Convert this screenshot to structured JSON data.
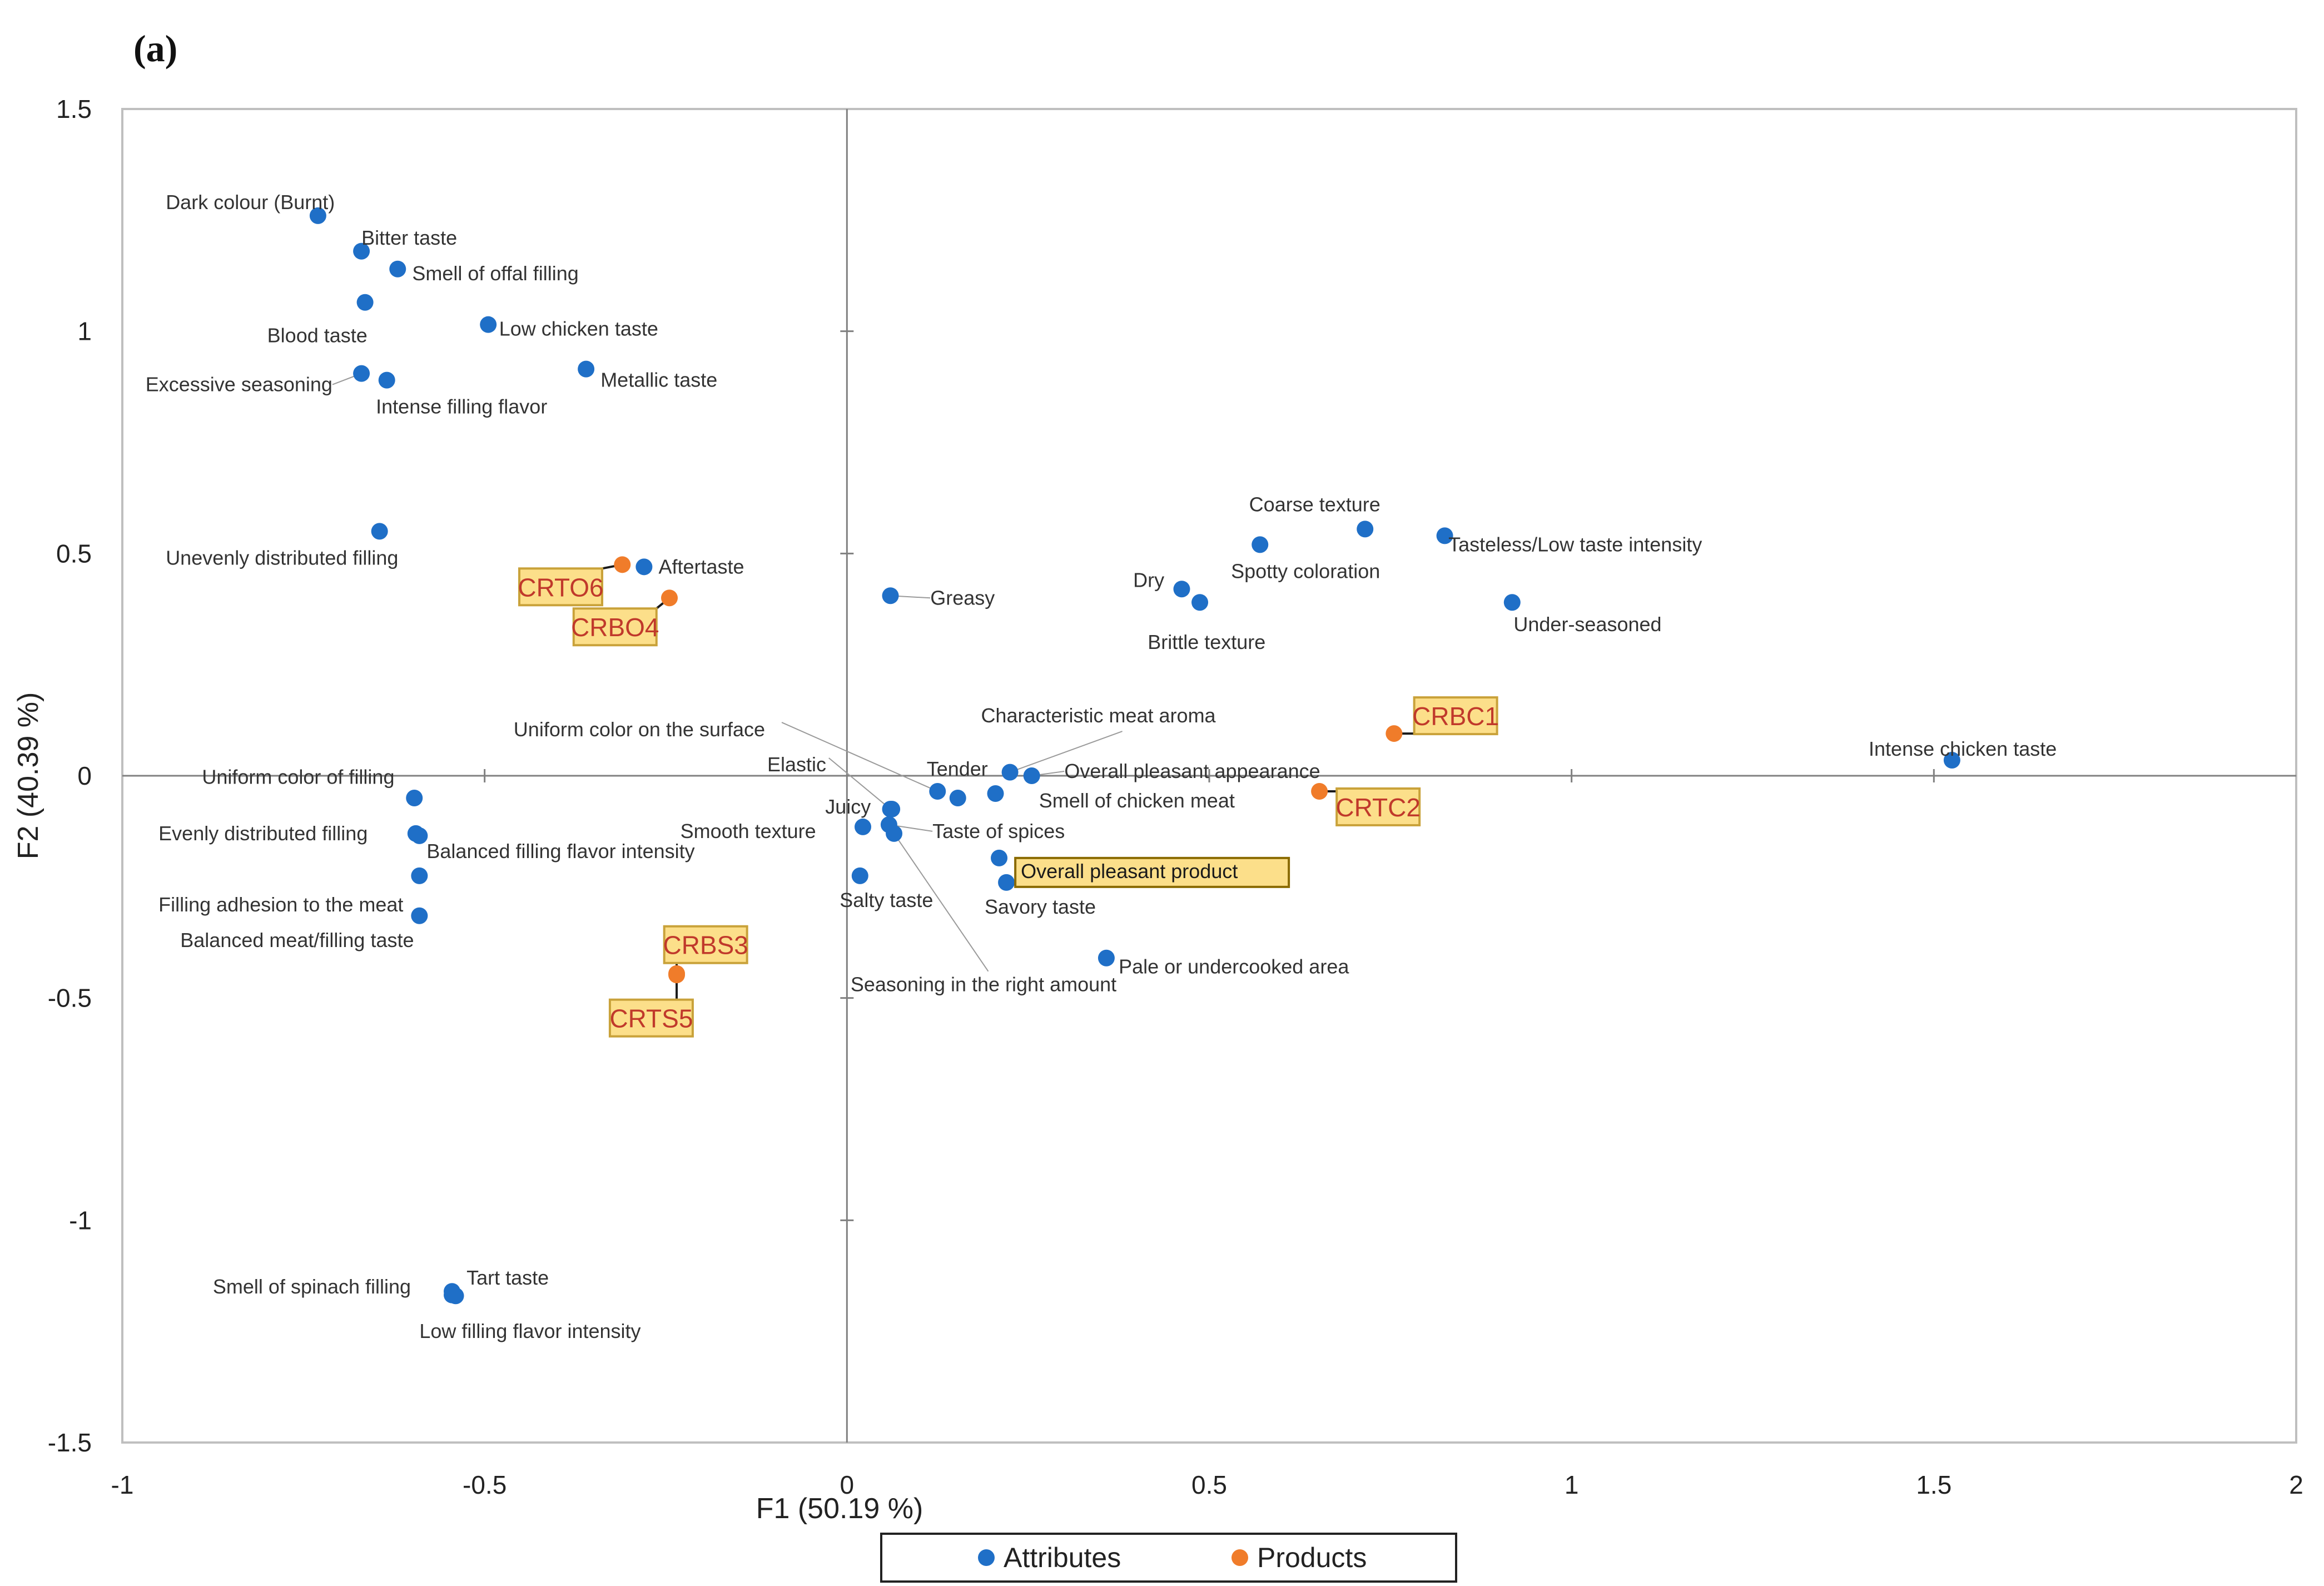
{
  "panel_label": "(a)",
  "chart_data": {
    "type": "scatter",
    "title": "",
    "xlabel": "F1 (50.19 %)",
    "ylabel": "F2 (40.39 %)",
    "xlim": [
      -1,
      2
    ],
    "ylim": [
      -1.5,
      1.5
    ],
    "xticks": [
      -1,
      -0.5,
      0,
      0.5,
      1,
      1.5,
      2
    ],
    "yticks": [
      -1.5,
      -1,
      -0.5,
      0,
      0.5,
      1,
      1.5
    ],
    "xtick_labels": [
      "-1",
      "-0.5",
      "0",
      "0.5",
      "1",
      "1.5",
      "2"
    ],
    "ytick_labels": [
      "-1.5",
      "-1",
      "-0.5",
      "0",
      "0.5",
      "1",
      "1.5"
    ],
    "legend": {
      "position": "bottom",
      "entries": [
        {
          "name": "Attributes",
          "color": "#1f6fc7"
        },
        {
          "name": "Products",
          "color": "#f07c2a"
        }
      ]
    },
    "series": [
      {
        "name": "Attributes",
        "color": "#1f6fc7",
        "points": [
          {
            "label": "Dark colour (Burnt)",
            "x": -0.73,
            "y": 1.26,
            "lx": -0.94,
            "ly": 1.29,
            "anchor": "start"
          },
          {
            "label": "Bitter taste",
            "x": -0.67,
            "y": 1.18,
            "lx": -0.67,
            "ly": 1.21,
            "anchor": "start"
          },
          {
            "label": "Smell of offal filling",
            "x": -0.62,
            "y": 1.14,
            "lx": -0.6,
            "ly": 1.13,
            "anchor": "start"
          },
          {
            "label": "Blood taste",
            "x": -0.665,
            "y": 1.065,
            "lx": -0.8,
            "ly": 0.99,
            "anchor": "start"
          },
          {
            "label": "Low chicken taste",
            "x": -0.495,
            "y": 1.015,
            "lx": -0.48,
            "ly": 1.005,
            "anchor": "start"
          },
          {
            "label": "Metallic taste",
            "x": -0.36,
            "y": 0.915,
            "lx": -0.34,
            "ly": 0.89,
            "anchor": "start"
          },
          {
            "label": "Excessive seasoning",
            "x": -0.67,
            "y": 0.905,
            "lx": -0.71,
            "ly": 0.88,
            "anchor": "end",
            "leader": true
          },
          {
            "label": "Intense filling flavor",
            "x": -0.635,
            "y": 0.89,
            "lx": -0.65,
            "ly": 0.83,
            "anchor": "start"
          },
          {
            "label": "Unevenly distributed filling",
            "x": -0.645,
            "y": 0.55,
            "lx": -0.94,
            "ly": 0.49,
            "anchor": "start"
          },
          {
            "label": "Aftertaste",
            "x": -0.28,
            "y": 0.47,
            "lx": -0.26,
            "ly": 0.47,
            "anchor": "start"
          },
          {
            "label": "Greasy",
            "x": 0.06,
            "y": 0.405,
            "lx": 0.115,
            "ly": 0.4,
            "anchor": "start",
            "leader": true
          },
          {
            "label": "Coarse texture",
            "x": 0.715,
            "y": 0.555,
            "lx": 0.555,
            "ly": 0.61,
            "anchor": "start"
          },
          {
            "label": "Tasteless/Low taste intensity",
            "x": 0.825,
            "y": 0.54,
            "lx": 0.83,
            "ly": 0.52,
            "anchor": "start"
          },
          {
            "label": "Spotty coloration",
            "x": 0.57,
            "y": 0.52,
            "lx": 0.53,
            "ly": 0.46,
            "anchor": "start"
          },
          {
            "label": "Dry",
            "x": 0.462,
            "y": 0.42,
            "lx": 0.395,
            "ly": 0.44,
            "anchor": "start"
          },
          {
            "label": "Brittle texture",
            "x": 0.487,
            "y": 0.39,
            "lx": 0.415,
            "ly": 0.3,
            "anchor": "start"
          },
          {
            "label": "Under-seasoned",
            "x": 0.918,
            "y": 0.39,
            "lx": 0.92,
            "ly": 0.34,
            "anchor": "start"
          },
          {
            "label": "Intense chicken taste",
            "x": 1.525,
            "y": 0.035,
            "lx": 1.41,
            "ly": 0.06,
            "anchor": "start"
          },
          {
            "label": "Characteristic meat aroma",
            "x": 0.225,
            "y": 0.008,
            "lx": 0.185,
            "ly": 0.135,
            "anchor": "start",
            "lx2": 0.38,
            "ly2": 0.1
          },
          {
            "label": "Overall pleasant appearance",
            "x": 0.255,
            "y": 0.0,
            "lx": 0.3,
            "ly": 0.01,
            "anchor": "start",
            "leader": true
          },
          {
            "label": "Tender",
            "x": 0.153,
            "y": -0.05,
            "lx": 0.11,
            "ly": 0.015,
            "anchor": "start"
          },
          {
            "label": "Smell of chicken meat",
            "x": 0.205,
            "y": -0.04,
            "lx": 0.265,
            "ly": -0.056,
            "anchor": "start"
          },
          {
            "label": "Uniform color on the surface",
            "x": 0.125,
            "y": -0.035,
            "lx": -0.46,
            "ly": 0.104,
            "anchor": "start",
            "lx2": -0.09,
            "ly2": 0.12
          },
          {
            "label": "Elastic",
            "x": 0.06,
            "y": -0.075,
            "lx": -0.11,
            "ly": 0.025,
            "anchor": "start",
            "lx2": -0.025,
            "ly2": 0.04
          },
          {
            "label": "Juicy",
            "x": 0.062,
            "y": -0.075,
            "lx": -0.03,
            "ly": -0.07,
            "anchor": "start"
          },
          {
            "label": "Smooth texture",
            "x": 0.022,
            "y": -0.115,
            "lx": -0.23,
            "ly": -0.125,
            "anchor": "start"
          },
          {
            "label": "Taste of spices",
            "x": 0.058,
            "y": -0.11,
            "lx": 0.118,
            "ly": -0.125,
            "anchor": "start",
            "leader": true
          },
          {
            "label": "Balanced filling flavor intensity",
            "x": -0.59,
            "y": -0.135,
            "lx": -0.58,
            "ly": -0.17,
            "anchor": "start"
          },
          {
            "label": "Overall pleasant product",
            "x": 0.21,
            "y": -0.185,
            "lx": 0.24,
            "ly": -0.215,
            "anchor": "start",
            "highlight": true
          },
          {
            "label": "Savory taste",
            "x": 0.22,
            "y": -0.24,
            "lx": 0.19,
            "ly": -0.295,
            "anchor": "start"
          },
          {
            "label": "Salty taste",
            "x": 0.018,
            "y": -0.225,
            "lx": -0.01,
            "ly": -0.28,
            "anchor": "start"
          },
          {
            "label": "Seasoning in the right amount",
            "x": 0.065,
            "y": -0.13,
            "lx": 0.005,
            "ly": -0.47,
            "anchor": "start",
            "lx2": 0.195,
            "ly2": -0.44
          },
          {
            "label": "Pale or undercooked area",
            "x": 0.358,
            "y": -0.41,
            "lx": 0.375,
            "ly": -0.43,
            "anchor": "start"
          },
          {
            "label": "Uniform color of filling",
            "x": -0.597,
            "y": -0.05,
            "lx": -0.89,
            "ly": -0.003,
            "anchor": "start"
          },
          {
            "label": "Evenly distributed filling",
            "x": -0.595,
            "y": -0.13,
            "lx": -0.95,
            "ly": -0.13,
            "anchor": "start"
          },
          {
            "label": "Filling adhesion to the meat",
            "x": -0.59,
            "y": -0.225,
            "lx": -0.95,
            "ly": -0.29,
            "anchor": "start"
          },
          {
            "label": "Balanced meat/filling taste",
            "x": -0.59,
            "y": -0.315,
            "lx": -0.92,
            "ly": -0.37,
            "anchor": "start"
          },
          {
            "label": "Tart taste",
            "x": -0.545,
            "y": -1.16,
            "lx": -0.525,
            "ly": -1.13,
            "anchor": "start"
          },
          {
            "label": "Smell of spinach filling",
            "x": -0.545,
            "y": -1.168,
            "lx": -0.875,
            "ly": -1.15,
            "anchor": "start"
          },
          {
            "label": "Low filling flavor intensity",
            "x": -0.54,
            "y": -1.17,
            "lx": -0.59,
            "ly": -1.25,
            "anchor": "start"
          }
        ]
      },
      {
        "name": "Products",
        "color": "#f07c2a",
        "points": [
          {
            "label": "CRTO6",
            "x": -0.31,
            "y": 0.475,
            "lx": -0.395,
            "ly": 0.425
          },
          {
            "label": "CRBO4",
            "x": -0.245,
            "y": 0.4,
            "lx": -0.32,
            "ly": 0.335
          },
          {
            "label": "CRBC1",
            "x": 0.755,
            "y": 0.095,
            "lx": 0.84,
            "ly": 0.135
          },
          {
            "label": "CRTC2",
            "x": 0.652,
            "y": -0.035,
            "lx": 0.733,
            "ly": -0.07
          },
          {
            "label": "CRBS3",
            "x": -0.235,
            "y": -0.445,
            "lx": -0.195,
            "ly": -0.38
          },
          {
            "label": "CRTS5",
            "x": -0.235,
            "y": -0.448,
            "lx": -0.27,
            "ly": -0.545
          }
        ]
      }
    ]
  }
}
